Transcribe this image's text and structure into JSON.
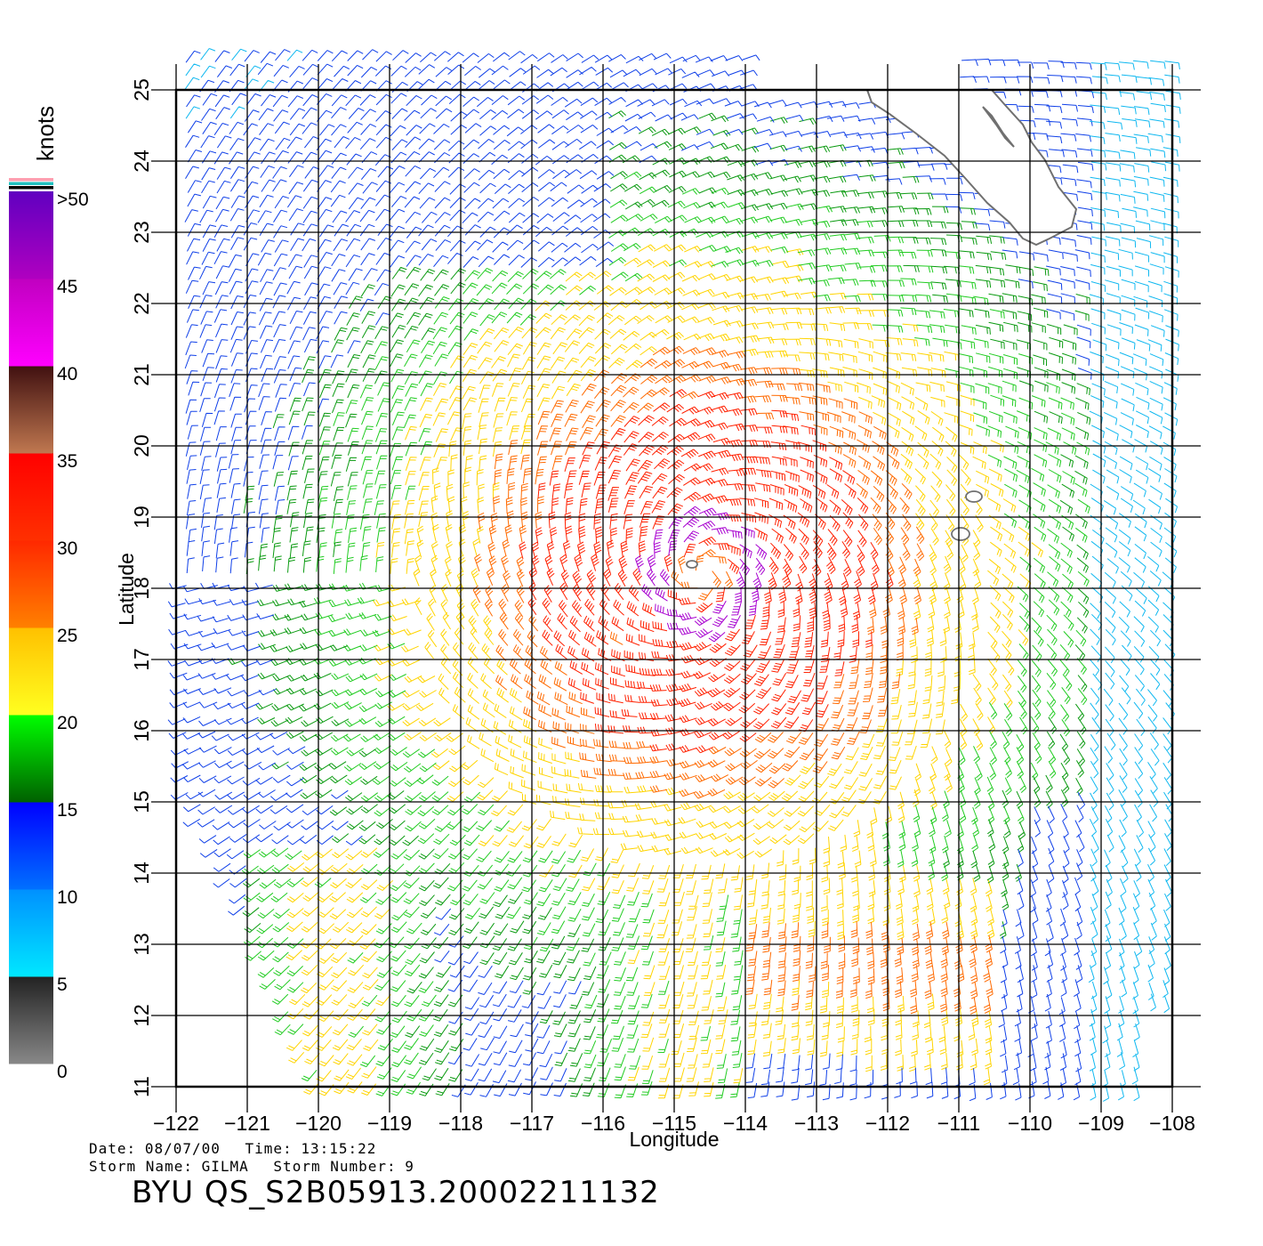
{
  "map": {
    "xlabel": "Longitude",
    "ylabel": "Latitude",
    "lon_range": [
      -122,
      -108
    ],
    "lat_range": [
      11,
      25
    ],
    "lon_ticks": [
      "-122",
      "-121",
      "-120",
      "-119",
      "-118",
      "-117",
      "-116",
      "-115",
      "-114",
      "-113",
      "-112",
      "-111",
      "-110",
      "-109",
      "-108"
    ],
    "lat_ticks": [
      "11",
      "12",
      "13",
      "14",
      "15",
      "16",
      "17",
      "18",
      "19",
      "20",
      "21",
      "22",
      "23",
      "24",
      "25"
    ],
    "grid": true,
    "features": [
      "wind barbs",
      "Baja California coastline",
      "Islas Revillagigedo"
    ]
  },
  "colorbar": {
    "unit_label": "knots",
    "tick_labels": [
      ">50",
      "45",
      "40",
      "35",
      "30",
      "25",
      "20",
      "15",
      "10",
      "5",
      "0"
    ],
    "bands": [
      {
        "from": 0,
        "to": 5,
        "colors": [
          "#888888",
          "#222222"
        ]
      },
      {
        "from": 5,
        "to": 10,
        "colors": [
          "#00e8ff",
          "#0090ff"
        ]
      },
      {
        "from": 10,
        "to": 15,
        "colors": [
          "#0070ff",
          "#0000ff"
        ]
      },
      {
        "from": 15,
        "to": 20,
        "colors": [
          "#006000",
          "#00ff00"
        ]
      },
      {
        "from": 20,
        "to": 25,
        "colors": [
          "#ffff20",
          "#ffc000"
        ]
      },
      {
        "from": 25,
        "to": 30,
        "colors": [
          "#ff8000",
          "#ff2800"
        ]
      },
      {
        "from": 30,
        "to": 35,
        "colors": [
          "#ff3000",
          "#ff0000"
        ]
      },
      {
        "from": 35,
        "to": 40,
        "colors": [
          "#c07850",
          "#401010"
        ]
      },
      {
        "from": 40,
        "to": 45,
        "colors": [
          "#ff00ff",
          "#c000c0"
        ]
      },
      {
        "from": 45,
        "to": 50,
        "colors": [
          "#b000c0",
          "#6000c0"
        ]
      }
    ],
    "cap_colors": [
      "#ff9fb0",
      "#20c0c0",
      "#000000"
    ]
  },
  "storm": {
    "center_lon": -114.6,
    "center_lat": 18.2
  },
  "footer": {
    "date_label": "Date:",
    "date": "08/07/00",
    "time_label": "Time:",
    "time": "13:15:22",
    "storm_name_label": "Storm Name:",
    "storm_name": "GILMA",
    "storm_number_label": "Storm Number:",
    "storm_number": "9",
    "product_id": "BYU QS_S2B05913.20002211132"
  }
}
